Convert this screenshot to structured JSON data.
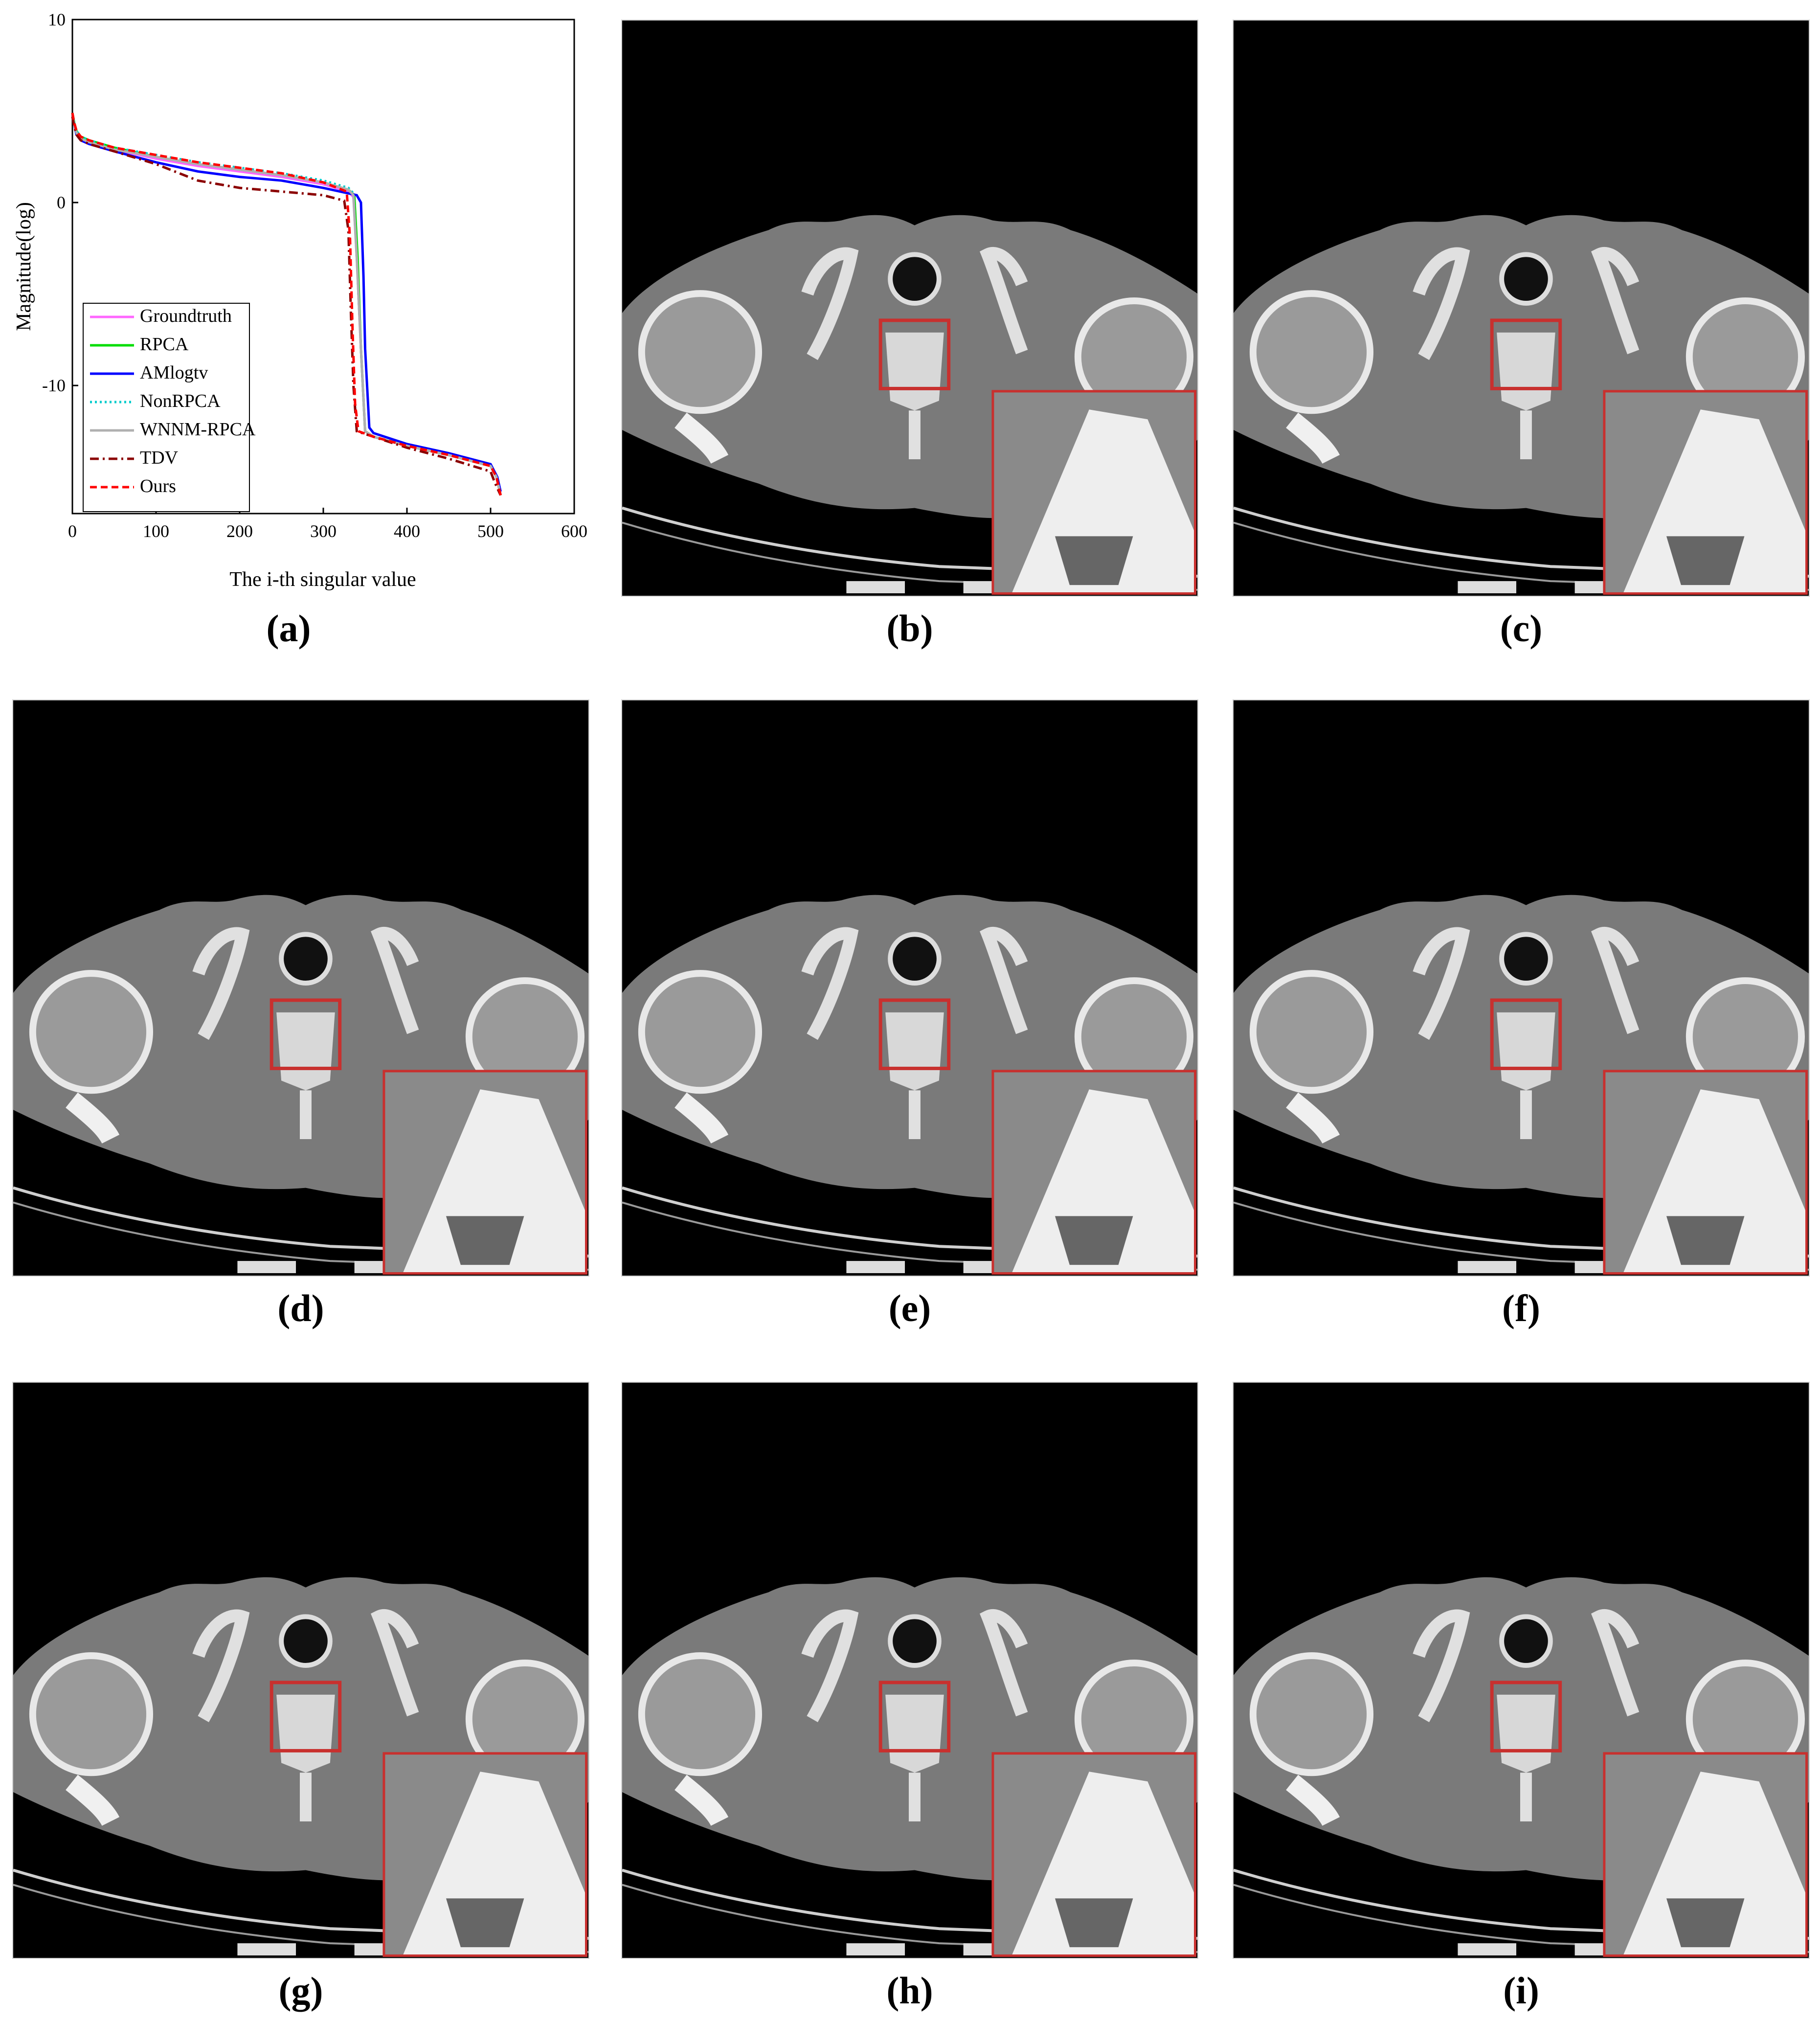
{
  "figure": {
    "panel_captions": [
      {
        "id": "a",
        "text": "(a)"
      },
      {
        "id": "b",
        "text": "(b)"
      },
      {
        "id": "c",
        "text": "(c)"
      },
      {
        "id": "d",
        "text": "(d)"
      },
      {
        "id": "e",
        "text": "(e)"
      },
      {
        "id": "f",
        "text": "(f)"
      },
      {
        "id": "g",
        "text": "(g)"
      },
      {
        "id": "h",
        "text": "(h)"
      },
      {
        "id": "i",
        "text": "(i)"
      }
    ]
  },
  "chart_data": {
    "type": "line",
    "title": "",
    "xlabel": "The i-th singular value",
    "ylabel": "Magnitude(log)",
    "xlim": [
      0,
      600
    ],
    "ylim": [
      -17,
      10
    ],
    "xticks": [
      0,
      100,
      200,
      300,
      400,
      500,
      600
    ],
    "yticks": [
      10,
      0,
      -10
    ],
    "grid": false,
    "legend_position": "bottom-left",
    "series": [
      {
        "name": "Groundtruth",
        "color": "#ff66ff",
        "style": "solid",
        "x": [
          0,
          2,
          5,
          10,
          20,
          50,
          100,
          150,
          200,
          250,
          300,
          330,
          336,
          340,
          345,
          350,
          360,
          400,
          450,
          500,
          507,
          512
        ],
        "y": [
          4.8,
          4.3,
          3.8,
          3.5,
          3.3,
          2.9,
          2.4,
          2.0,
          1.7,
          1.4,
          1.0,
          0.6,
          0.3,
          -3.0,
          -8.0,
          -12.5,
          -12.8,
          -13.3,
          -13.8,
          -14.4,
          -15.0,
          -16.0
        ]
      },
      {
        "name": "RPCA",
        "color": "#00dd00",
        "style": "solid",
        "x": [
          0,
          2,
          5,
          10,
          20,
          50,
          100,
          150,
          200,
          250,
          300,
          330,
          337,
          341,
          345,
          350,
          360,
          400,
          450,
          500,
          507,
          512
        ],
        "y": [
          4.9,
          4.4,
          3.9,
          3.6,
          3.4,
          3.0,
          2.5,
          2.1,
          1.8,
          1.5,
          1.1,
          0.7,
          0.4,
          -3.0,
          -8.0,
          -12.5,
          -12.8,
          -13.3,
          -13.8,
          -14.4,
          -15.0,
          -16.0
        ]
      },
      {
        "name": "AMlogtv",
        "color": "#0000ff",
        "style": "solid",
        "x": [
          0,
          2,
          5,
          10,
          20,
          50,
          100,
          150,
          200,
          250,
          300,
          340,
          345,
          348,
          350,
          355,
          360,
          400,
          450,
          500,
          508,
          512
        ],
        "y": [
          4.8,
          4.3,
          3.7,
          3.4,
          3.2,
          2.8,
          2.2,
          1.7,
          1.4,
          1.2,
          0.8,
          0.4,
          0.0,
          -4.0,
          -8.0,
          -12.3,
          -12.6,
          -13.2,
          -13.7,
          -14.3,
          -15.0,
          -15.8
        ]
      },
      {
        "name": "NonRPCA",
        "color": "#00cccc",
        "style": "dotted",
        "x": [
          0,
          2,
          5,
          10,
          20,
          50,
          100,
          150,
          200,
          250,
          300,
          330,
          336,
          340,
          345,
          350,
          360,
          400,
          450,
          500,
          507,
          512
        ],
        "y": [
          4.9,
          4.4,
          3.9,
          3.6,
          3.4,
          3.0,
          2.6,
          2.2,
          1.9,
          1.6,
          1.2,
          0.8,
          0.5,
          -3.0,
          -8.0,
          -12.5,
          -12.8,
          -13.3,
          -13.8,
          -14.4,
          -15.0,
          -16.0
        ]
      },
      {
        "name": "WNNM-RPCA",
        "color": "#b0b0b0",
        "style": "solid",
        "x": [
          0,
          2,
          5,
          10,
          20,
          50,
          100,
          150,
          200,
          250,
          300,
          330,
          336,
          340,
          345,
          350,
          360,
          400,
          450,
          500,
          507,
          512
        ],
        "y": [
          4.8,
          4.3,
          3.8,
          3.5,
          3.3,
          2.9,
          2.5,
          2.1,
          1.8,
          1.5,
          1.1,
          0.7,
          0.4,
          -3.0,
          -8.0,
          -12.5,
          -12.8,
          -13.3,
          -13.8,
          -14.4,
          -15.0,
          -16.0
        ]
      },
      {
        "name": "TDV",
        "color": "#8b0000",
        "style": "dashdot",
        "x": [
          0,
          2,
          5,
          10,
          20,
          50,
          100,
          150,
          200,
          250,
          300,
          325,
          330,
          333,
          336,
          340,
          360,
          400,
          450,
          500,
          505,
          512
        ],
        "y": [
          4.7,
          4.2,
          3.7,
          3.4,
          3.2,
          2.8,
          2.1,
          1.2,
          0.8,
          0.6,
          0.4,
          0.1,
          -1.5,
          -6.0,
          -10.0,
          -12.5,
          -12.8,
          -13.4,
          -14.0,
          -14.7,
          -15.3,
          -16.0
        ]
      },
      {
        "name": "Ours",
        "color": "#ff0000",
        "style": "dashed",
        "x": [
          0,
          2,
          5,
          10,
          20,
          50,
          100,
          150,
          200,
          250,
          300,
          328,
          332,
          335,
          338,
          342,
          360,
          400,
          450,
          500,
          507,
          512
        ],
        "y": [
          4.9,
          4.4,
          3.9,
          3.6,
          3.4,
          3.0,
          2.6,
          2.2,
          1.9,
          1.6,
          1.1,
          0.6,
          -2.0,
          -7.0,
          -11.0,
          -12.5,
          -12.8,
          -13.3,
          -13.8,
          -14.4,
          -15.0,
          -16.0
        ]
      }
    ]
  }
}
